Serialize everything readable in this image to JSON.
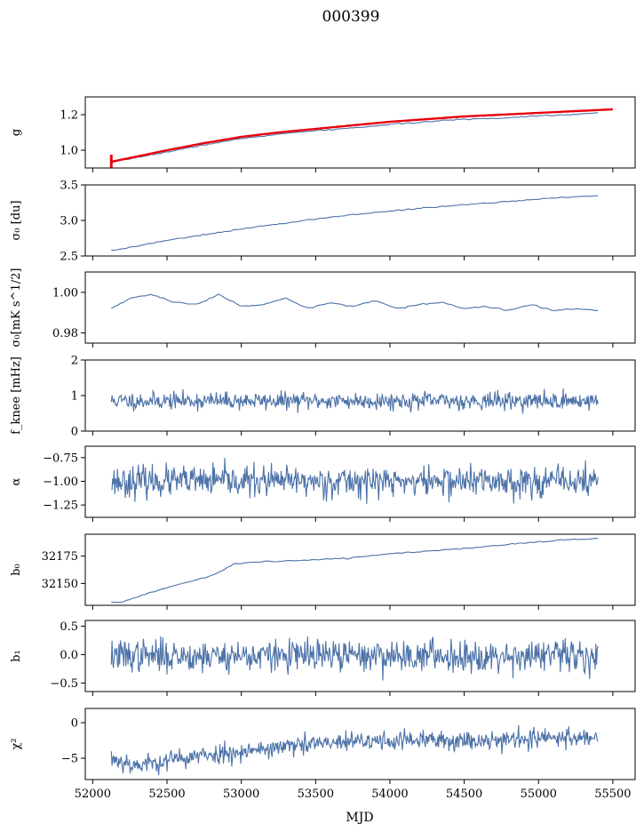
{
  "figure": {
    "title": "000399",
    "xlabel": "MJD"
  },
  "colors": {
    "trace": "#4c72a8",
    "fit": "#e8000b",
    "axes": "#000000"
  },
  "chart_data": [
    {
      "type": "line",
      "name": "g",
      "ylabel_html": "g",
      "ylim": [
        0.9,
        1.3
      ],
      "yticks": [
        1.0,
        1.2
      ],
      "ytick_labels": [
        "1.0",
        "1.2"
      ],
      "series": [
        {
          "style": "trace",
          "x": [
            52125,
            52300,
            52500,
            52750,
            53000,
            53250,
            53500,
            53750,
            54000,
            54250,
            54500,
            54750,
            55000,
            55200,
            55400
          ],
          "y": [
            0.93,
            0.96,
            0.99,
            1.03,
            1.065,
            1.09,
            1.11,
            1.125,
            1.145,
            1.16,
            1.175,
            1.18,
            1.195,
            1.2,
            1.21
          ]
        },
        {
          "style": "fit",
          "x": [
            52125,
            52300,
            52500,
            52750,
            53000,
            53250,
            53500,
            53750,
            54000,
            54250,
            54500,
            54750,
            55000,
            55250,
            55500
          ],
          "y": [
            0.935,
            0.965,
            1.0,
            1.04,
            1.075,
            1.1,
            1.12,
            1.14,
            1.16,
            1.175,
            1.19,
            1.2,
            1.21,
            1.22,
            1.23
          ]
        }
      ],
      "show_xticklabels": false
    },
    {
      "type": "line",
      "name": "sigma0_du",
      "ylabel_html": "σ₀ [du]",
      "ylim": [
        2.5,
        3.5
      ],
      "yticks": [
        2.5,
        3.0,
        3.5
      ],
      "ytick_labels": [
        "2.5",
        "3.0",
        "3.5"
      ],
      "series": [
        {
          "style": "trace",
          "x": [
            52125,
            52200,
            52350,
            52500,
            52750,
            53000,
            53250,
            53500,
            53750,
            54000,
            54250,
            54500,
            54750,
            55000,
            55200,
            55400
          ],
          "y": [
            2.58,
            2.6,
            2.66,
            2.72,
            2.8,
            2.88,
            2.95,
            3.02,
            3.08,
            3.13,
            3.18,
            3.22,
            3.26,
            3.3,
            3.33,
            3.35
          ]
        }
      ],
      "show_xticklabels": false
    },
    {
      "type": "line",
      "name": "sigma0_mKs",
      "ylabel_html": "σ₀[mK s^1/2]",
      "ylim": [
        0.975,
        1.01
      ],
      "yticks": [
        0.98,
        1.0
      ],
      "ytick_labels": [
        "0.98",
        "1.00"
      ],
      "series": [
        {
          "style": "trace",
          "x": [
            52125,
            52250,
            52400,
            52550,
            52700,
            52850,
            53000,
            53150,
            53300,
            53450,
            53600,
            53750,
            53900,
            54050,
            54200,
            54350,
            54500,
            54650,
            54800,
            54950,
            55100,
            55250,
            55400
          ],
          "y": [
            0.992,
            0.997,
            0.999,
            0.995,
            0.994,
            0.999,
            0.993,
            0.994,
            0.997,
            0.992,
            0.995,
            0.993,
            0.996,
            0.992,
            0.994,
            0.995,
            0.992,
            0.993,
            0.991,
            0.994,
            0.991,
            0.992,
            0.991
          ]
        }
      ],
      "show_xticklabels": false
    },
    {
      "type": "line",
      "name": "fknee",
      "ylabel_html": "f_knee [mHz]",
      "ylim": [
        0,
        2
      ],
      "yticks": [
        0,
        1,
        2
      ],
      "ytick_labels": [
        "0",
        "1",
        "2"
      ],
      "series": [
        {
          "style": "trace",
          "noise": {
            "n": 700,
            "mean": 0.85,
            "sd": 0.12,
            "seed": 11,
            "x0": 52125,
            "x1": 55400
          }
        }
      ],
      "show_xticklabels": false
    },
    {
      "type": "line",
      "name": "alpha",
      "ylabel_html": "α",
      "ylim": [
        -1.38,
        -0.63
      ],
      "yticks": [
        -1.25,
        -1.0,
        -0.75
      ],
      "ytick_labels": [
        "−1.25",
        "−1.00",
        "−0.75"
      ],
      "series": [
        {
          "style": "trace",
          "noise": {
            "n": 700,
            "mean": -1.0,
            "sd": 0.08,
            "seed": 23,
            "x0": 52125,
            "x1": 55400
          }
        }
      ],
      "show_xticklabels": false
    },
    {
      "type": "line",
      "name": "b0",
      "ylabel_html": "b₀",
      "ylim": [
        32130,
        32195
      ],
      "yticks": [
        32150,
        32175
      ],
      "ytick_labels": [
        "32150",
        "32175"
      ],
      "series": [
        {
          "style": "trace",
          "x": [
            52125,
            52200,
            52350,
            52550,
            52750,
            52850,
            52950,
            53150,
            53400,
            53700,
            54000,
            54300,
            54600,
            54900,
            55200,
            55400
          ],
          "y": [
            32133,
            32133,
            32140,
            32148,
            32155,
            32160,
            32168,
            32170,
            32171,
            32173,
            32177,
            32180,
            32183,
            32187,
            32190,
            32191
          ]
        }
      ],
      "show_xticklabels": false
    },
    {
      "type": "line",
      "name": "b1",
      "ylabel_html": "b₁",
      "ylim": [
        -0.65,
        0.6
      ],
      "yticks": [
        -0.5,
        0.0,
        0.5
      ],
      "ytick_labels": [
        "−0.5",
        "0.0",
        "0.5"
      ],
      "series": [
        {
          "style": "trace",
          "noise": {
            "n": 700,
            "mean": -0.02,
            "sd": 0.14,
            "seed": 37,
            "x0": 52125,
            "x1": 55400
          }
        }
      ],
      "show_xticklabels": false
    },
    {
      "type": "line",
      "name": "chi2",
      "ylabel_html": "χ²",
      "ylim": [
        -8,
        2
      ],
      "yticks": [
        -5,
        0
      ],
      "ytick_labels": [
        "−5",
        "0"
      ],
      "series": [
        {
          "style": "trace",
          "noise": {
            "n": 700,
            "sd": 0.7,
            "seed": 53,
            "x0": 52125,
            "x1": 55400,
            "trend_x": [
              52125,
              52300,
              52600,
              53000,
              53500,
              54000,
              54500,
              55000,
              55400
            ],
            "trend_y": [
              -5,
              -6,
              -5,
              -4,
              -3,
              -2.5,
              -2.5,
              -2.2,
              -2
            ]
          }
        }
      ],
      "show_xticklabels": true
    }
  ],
  "xaxis": {
    "xlim": [
      51950,
      55650
    ],
    "xticks": [
      52000,
      52500,
      53000,
      53500,
      54000,
      54500,
      55000,
      55500
    ],
    "xtick_labels": [
      "52000",
      "52500",
      "53000",
      "53500",
      "54000",
      "54500",
      "55000",
      "55500"
    ]
  }
}
